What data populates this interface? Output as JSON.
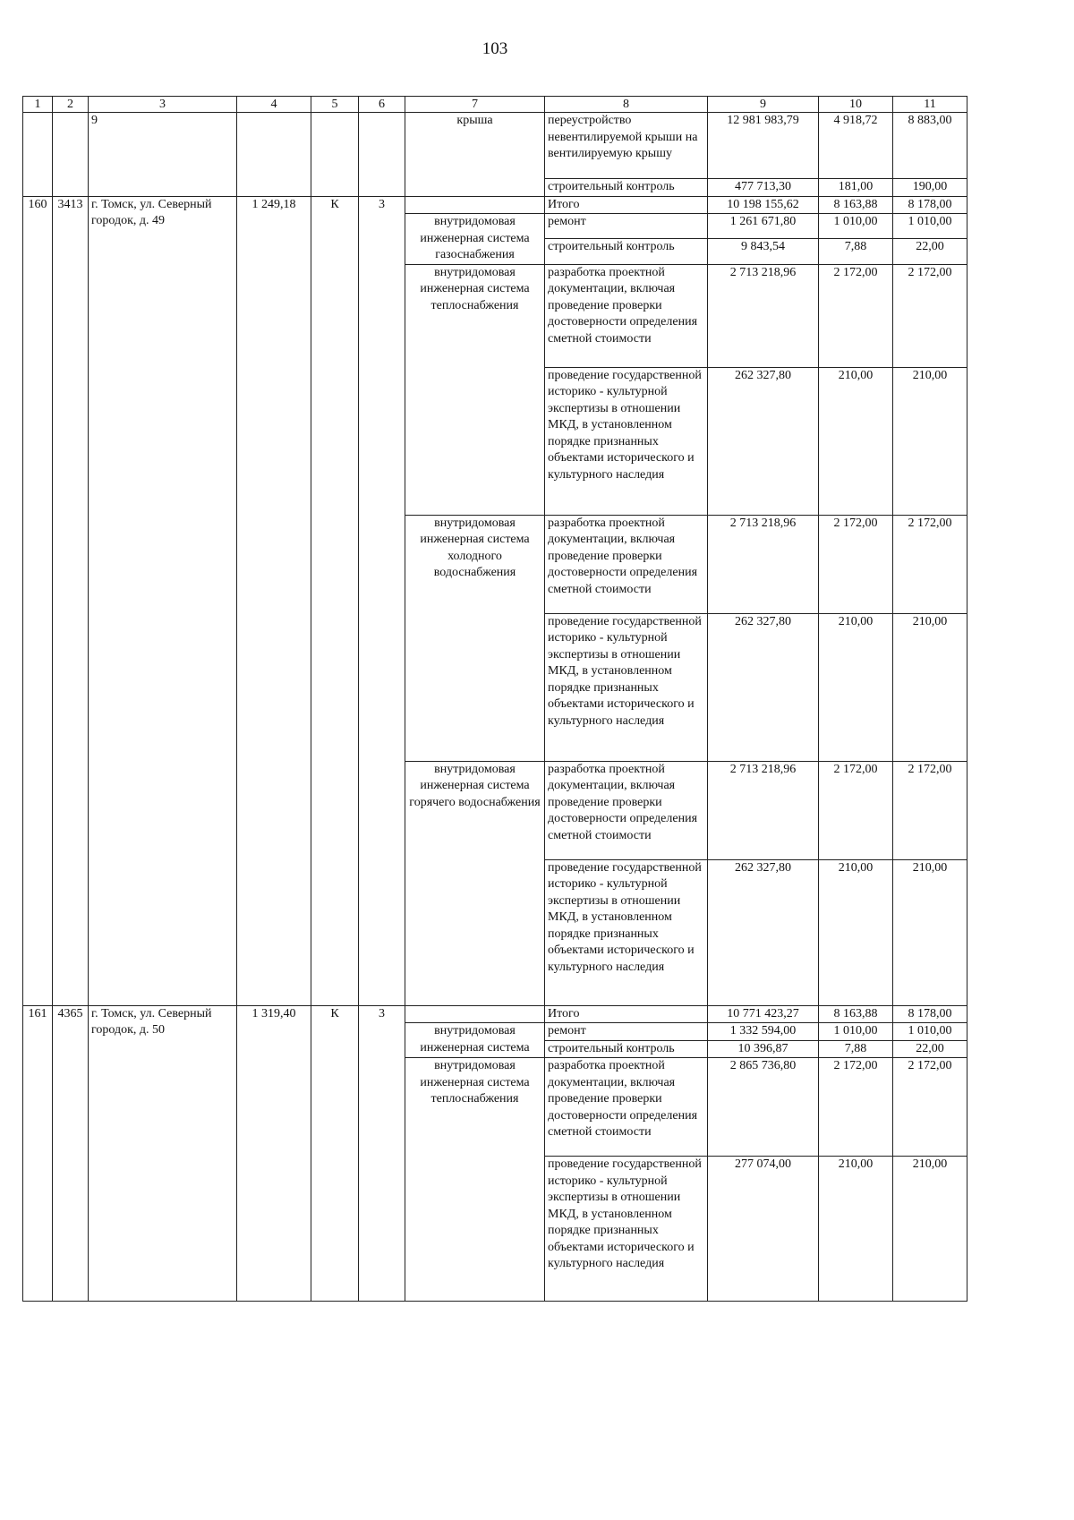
{
  "page_number": "103",
  "header": [
    "1",
    "2",
    "3",
    "4",
    "5",
    "6",
    "7",
    "8",
    "9",
    "10",
    "11"
  ],
  "cont": {
    "col3": "9",
    "element": "крыша",
    "works": [
      {
        "work": "переустройство невентилируемой крыши на вентилируемую крышу",
        "cost": "12 981 983,79",
        "unit": "4 918,72",
        "max": "8 883,00"
      },
      {
        "work": "строительный контроль",
        "cost": "477 713,30",
        "unit": "181,00",
        "max": "190,00"
      }
    ]
  },
  "r160": {
    "n": "160",
    "id": "3413",
    "address": "г. Томск, ул. Северный городок, д. 49",
    "area": "1 249,18",
    "type": "К",
    "floors": "3",
    "total": {
      "label": "Итого",
      "cost": "10 198 155,62",
      "unit": "8 163,88",
      "max": "8 178,00"
    },
    "gas": {
      "element": "внутридомовая инженерная система газоснабжения",
      "works": [
        {
          "work": "ремонт",
          "cost": "1 261 671,80",
          "unit": "1 010,00",
          "max": "1 010,00"
        },
        {
          "work": "строительный контроль",
          "cost": "9 843,54",
          "unit": "7,88",
          "max": "22,00"
        }
      ]
    },
    "heat": {
      "element": "внутридомовая инженерная система теплоснабжения",
      "works": [
        {
          "work": "разработка проектной документации, включая проведение проверки достоверности определения сметной стоимости",
          "cost": "2 713 218,96",
          "unit": "2 172,00",
          "max": "2 172,00"
        },
        {
          "work": "проведение государственной историко - культурной экспертизы в отношении МКД, в установленном порядке признанных объектами исторического и культурного наследия",
          "cost": "262 327,80",
          "unit": "210,00",
          "max": "210,00"
        }
      ]
    },
    "cold": {
      "element": "внутридомовая инженерная система холодного водоснабжения",
      "works": [
        {
          "work": "разработка проектной документации, включая проведение проверки достоверности определения сметной стоимости",
          "cost": "2 713 218,96",
          "unit": "2 172,00",
          "max": "2 172,00"
        },
        {
          "work": "проведение государственной историко - культурной экспертизы в отношении МКД, в установленном порядке признанных объектами исторического и культурного наследия",
          "cost": "262 327,80",
          "unit": "210,00",
          "max": "210,00"
        }
      ]
    },
    "hot": {
      "element": "внутридомовая инженерная система горячего водоснабжения",
      "works": [
        {
          "work": "разработка проектной документации, включая проведение проверки достоверности определения сметной стоимости",
          "cost": "2 713 218,96",
          "unit": "2 172,00",
          "max": "2 172,00"
        },
        {
          "work": "проведение государственной историко - культурной экспертизы в отношении МКД, в установленном порядке признанных объектами исторического и культурного наследия",
          "cost": "262 327,80",
          "unit": "210,00",
          "max": "210,00"
        }
      ]
    }
  },
  "r161": {
    "n": "161",
    "id": "4365",
    "address": "г. Томск, ул. Северный городок, д. 50",
    "area": "1 319,40",
    "type": "К",
    "floors": "3",
    "total": {
      "label": "Итого",
      "cost": "10 771 423,27",
      "unit": "8 163,88",
      "max": "8 178,00"
    },
    "gas": {
      "element": "внутридомовая инженерная система",
      "works": [
        {
          "work": "ремонт",
          "cost": "1 332 594,00",
          "unit": "1 010,00",
          "max": "1 010,00"
        },
        {
          "work": "строительный контроль",
          "cost": "10 396,87",
          "unit": "7,88",
          "max": "22,00"
        }
      ]
    },
    "heat": {
      "element": "внутридомовая инженерная система теплоснабжения",
      "works": [
        {
          "work": "разработка проектной документации, включая проведение проверки достоверности определения сметной стоимости",
          "cost": "2 865 736,80",
          "unit": "2 172,00",
          "max": "2 172,00"
        },
        {
          "work": "проведение государственной историко - культурной экспертизы в отношении МКД, в установленном порядке признанных объектами исторического и культурного наследия",
          "cost": "277 074,00",
          "unit": "210,00",
          "max": "210,00"
        }
      ]
    }
  }
}
